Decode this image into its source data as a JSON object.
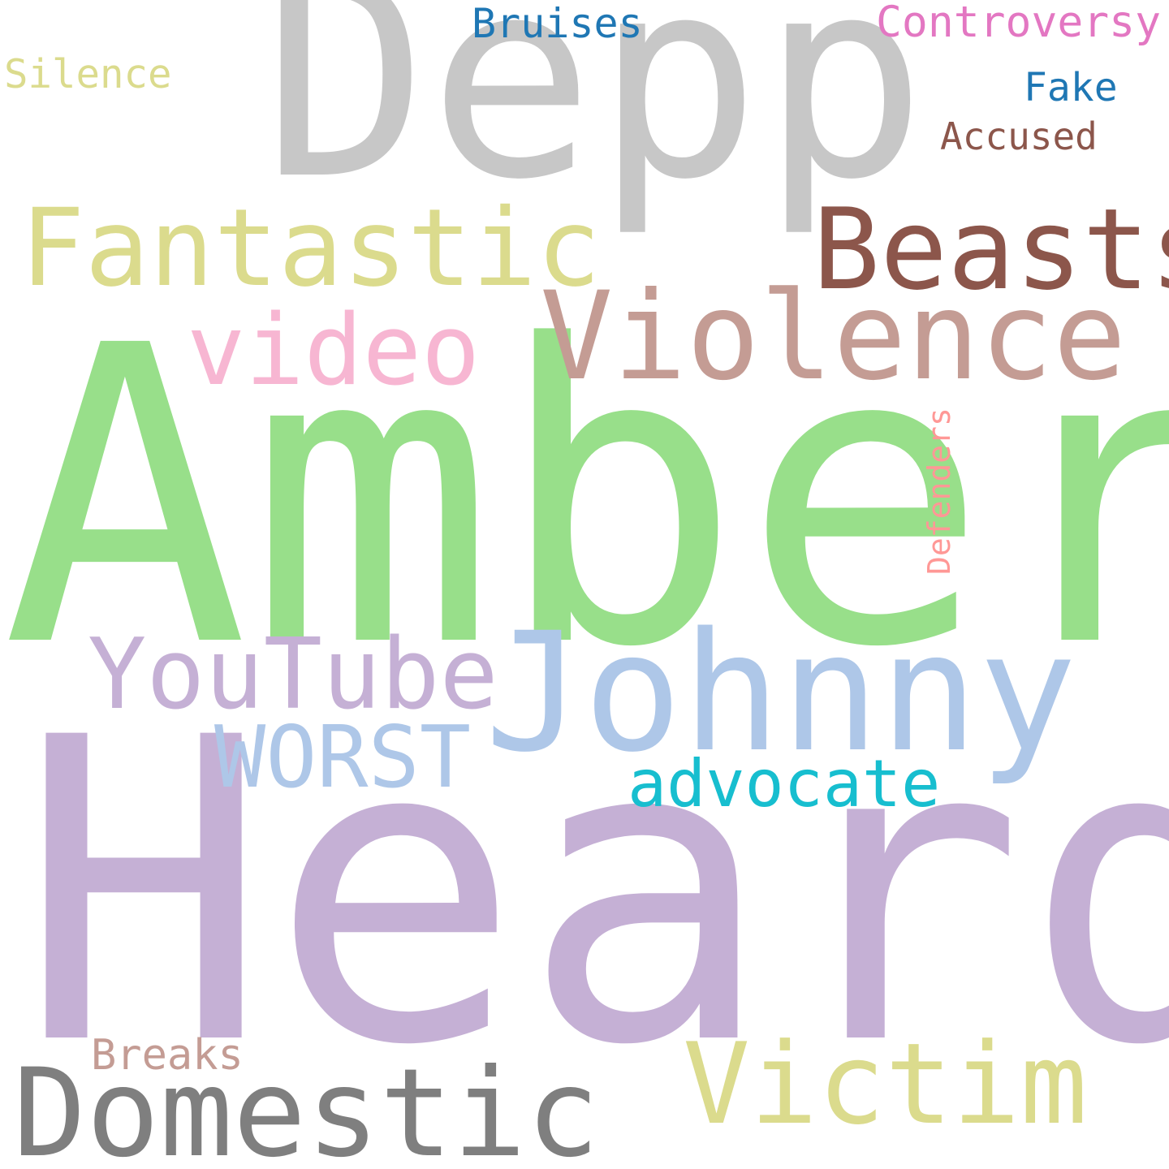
{
  "words": [
    {
      "id": "depp",
      "text": "Depp",
      "color": "#c7c7c7"
    },
    {
      "id": "amber",
      "text": "Amber",
      "color": "#98df8a"
    },
    {
      "id": "heard",
      "text": "Heard",
      "color": "#c5b0d5"
    },
    {
      "id": "johnny",
      "text": "Johnny",
      "color": "#aec7e8"
    },
    {
      "id": "fantastic",
      "text": "Fantastic",
      "color": "#dbdb8d"
    },
    {
      "id": "beasts",
      "text": "Beasts",
      "color": "#8c564b"
    },
    {
      "id": "violence",
      "text": "Violence",
      "color": "#c49c94"
    },
    {
      "id": "video",
      "text": "video",
      "color": "#f7b6d2"
    },
    {
      "id": "youtube",
      "text": "YouTube",
      "color": "#c5b0d5"
    },
    {
      "id": "worst",
      "text": "WORST",
      "color": "#aec7e8"
    },
    {
      "id": "advocate",
      "text": "advocate",
      "color": "#17becf"
    },
    {
      "id": "domestic",
      "text": "Domestic",
      "color": "#7f7f7f"
    },
    {
      "id": "victim",
      "text": "Victim",
      "color": "#dbdb8d"
    },
    {
      "id": "breaks",
      "text": "Breaks",
      "color": "#c49c94"
    },
    {
      "id": "bruises",
      "text": "Bruises",
      "color": "#1f77b4"
    },
    {
      "id": "controversy",
      "text": "Controversy",
      "color": "#e377c2"
    },
    {
      "id": "silence",
      "text": "Silence",
      "color": "#dbdb8d"
    },
    {
      "id": "fake",
      "text": "Fake",
      "color": "#1f77b4"
    },
    {
      "id": "accused",
      "text": "Accused",
      "color": "#8c564b"
    },
    {
      "id": "defenders",
      "text": "Defenders",
      "color": "#ff9896"
    }
  ]
}
